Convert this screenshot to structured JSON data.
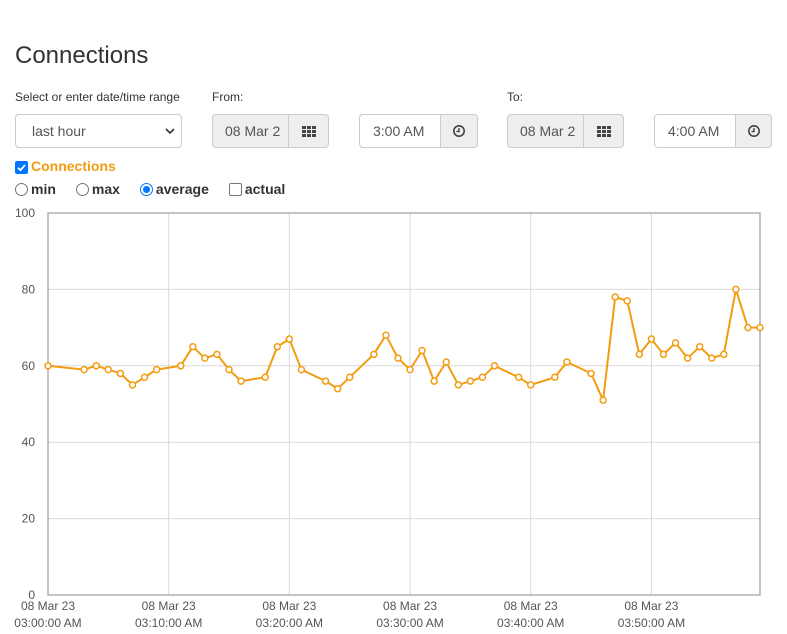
{
  "title": "Connections",
  "range": {
    "label": "Select or enter date/time range",
    "value": "last hour"
  },
  "from": {
    "label": "From:",
    "date": "08 Mar 2",
    "time": "3:00 AM"
  },
  "to": {
    "label": "To:",
    "date": "08 Mar 2",
    "time": "4:00 AM"
  },
  "series_toggle": {
    "label": "Connections",
    "checked": true
  },
  "modes": {
    "min": "min",
    "max": "max",
    "average": "average",
    "actual": "actual",
    "selected": "average"
  },
  "colors": {
    "line": "#f39c12",
    "grid": "#d9d9d9",
    "axis": "#888888"
  },
  "chart_data": {
    "type": "line",
    "ylim": [
      0,
      100
    ],
    "yticks": [
      "0",
      "20",
      "40",
      "60",
      "80",
      "100"
    ],
    "xlim": [
      0,
      59
    ],
    "xticks": [
      {
        "x": 0,
        "date": "08 Mar 23",
        "time": "03:00:00 AM"
      },
      {
        "x": 10,
        "date": "08 Mar 23",
        "time": "03:10:00 AM"
      },
      {
        "x": 20,
        "date": "08 Mar 23",
        "time": "03:20:00 AM"
      },
      {
        "x": 30,
        "date": "08 Mar 23",
        "time": "03:30:00 AM"
      },
      {
        "x": 40,
        "date": "08 Mar 23",
        "time": "03:40:00 AM"
      },
      {
        "x": 50,
        "date": "08 Mar 23",
        "time": "03:50:00 AM"
      }
    ],
    "grid": true,
    "series": [
      {
        "points": [
          [
            0,
            60
          ],
          [
            3,
            59
          ],
          [
            4,
            60
          ],
          [
            5,
            59
          ],
          [
            6,
            58
          ],
          [
            7,
            55
          ],
          [
            8,
            57
          ],
          [
            9,
            59
          ],
          [
            11,
            60
          ],
          [
            12,
            65
          ],
          [
            13,
            62
          ],
          [
            14,
            63
          ],
          [
            15,
            59
          ],
          [
            16,
            56
          ],
          [
            18,
            57
          ],
          [
            19,
            65
          ],
          [
            20,
            67
          ],
          [
            21,
            59
          ],
          [
            23,
            56
          ],
          [
            24,
            54
          ],
          [
            25,
            57
          ],
          [
            27,
            63
          ],
          [
            28,
            68
          ],
          [
            29,
            62
          ],
          [
            30,
            59
          ],
          [
            31,
            64
          ],
          [
            32,
            56
          ],
          [
            33,
            61
          ],
          [
            34,
            55
          ],
          [
            35,
            56
          ],
          [
            36,
            57
          ],
          [
            37,
            60
          ],
          [
            39,
            57
          ],
          [
            40,
            55
          ],
          [
            42,
            57
          ],
          [
            43,
            61
          ],
          [
            45,
            58
          ],
          [
            46,
            51
          ],
          [
            47,
            78
          ],
          [
            48,
            77
          ],
          [
            49,
            63
          ],
          [
            50,
            67
          ],
          [
            51,
            63
          ],
          [
            52,
            66
          ],
          [
            53,
            62
          ],
          [
            54,
            65
          ],
          [
            55,
            62
          ],
          [
            56,
            63
          ],
          [
            57,
            80
          ],
          [
            58,
            70
          ],
          [
            59,
            70
          ]
        ]
      }
    ]
  }
}
